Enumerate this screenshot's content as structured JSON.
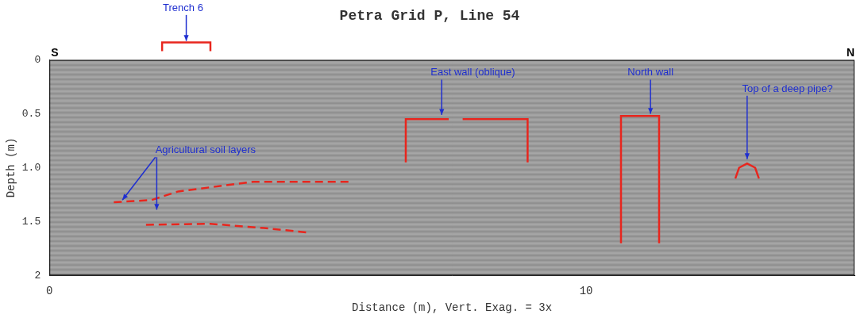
{
  "chart_data": {
    "type": "line",
    "title": "Petra Grid P, Line 54",
    "x_label": "Distance (m), Vert. Exag. = 3x",
    "y_label": "Depth (m)",
    "direction_labels": [
      "S",
      "N"
    ],
    "xlim": [
      0,
      15
    ],
    "xticks": [
      0,
      10
    ],
    "ylim": [
      0,
      2
    ],
    "yticks": [
      0,
      0.5,
      {
        "value": 1,
        "label": "1.0"
      },
      1.5,
      2
    ],
    "grid": false,
    "series": [
      {
        "color": "#e8261e",
        "line_style": "dashed",
        "x": [
          1.2,
          1.9,
          2.4,
          3.8,
          5.6
        ],
        "values": [
          1.32,
          1.3,
          1.22,
          1.13,
          1.13
        ]
      },
      {
        "color": "#e8261e",
        "line_style": "dashed",
        "x": [
          1.8,
          3.0,
          4.0,
          4.8
        ],
        "values": [
          1.53,
          1.52,
          1.56,
          1.6
        ]
      },
      {
        "color": "#e8261e",
        "line_style": "solid",
        "x": [
          6.64,
          6.64,
          7.44
        ],
        "values": [
          0.95,
          0.55,
          0.55
        ]
      },
      {
        "color": "#e8261e",
        "line_style": "solid",
        "x": [
          7.7,
          8.91,
          8.91
        ],
        "values": [
          0.55,
          0.55,
          0.95
        ]
      },
      {
        "color": "#e8261e",
        "line_style": "solid",
        "x": [
          10.65,
          10.65,
          11.36,
          11.36
        ],
        "values": [
          1.7,
          0.52,
          0.52,
          1.7
        ]
      },
      {
        "color": "#e8261e",
        "line_style": "solid",
        "x": [
          12.78,
          12.85,
          13.0,
          13.15,
          13.22
        ],
        "values": [
          1.1,
          1.0,
          0.96,
          1.0,
          1.1
        ]
      }
    ],
    "annotations": [
      {
        "text": "Trench 6",
        "x": 2.49,
        "y": -0.48,
        "span": [
          2.1,
          3.0
        ]
      },
      {
        "text": "Agricultural soil layers",
        "x": 2.91,
        "y": 0.84,
        "arrows": [
          [
            1.36,
            1.3
          ],
          [
            2.0,
            1.39
          ]
        ]
      },
      {
        "text": "East wall (oblique)",
        "x": 7.89,
        "y": 0.12,
        "arrows": [
          [
            7.31,
            0.51
          ]
        ]
      },
      {
        "text": "North wall",
        "x": 11.2,
        "y": 0.12,
        "arrows": [
          [
            11.2,
            0.5
          ]
        ]
      },
      {
        "text": "Top of a deep pipe?",
        "x": 13.75,
        "y": 0.27,
        "arrows": [
          [
            13.0,
            0.92
          ]
        ]
      }
    ]
  }
}
